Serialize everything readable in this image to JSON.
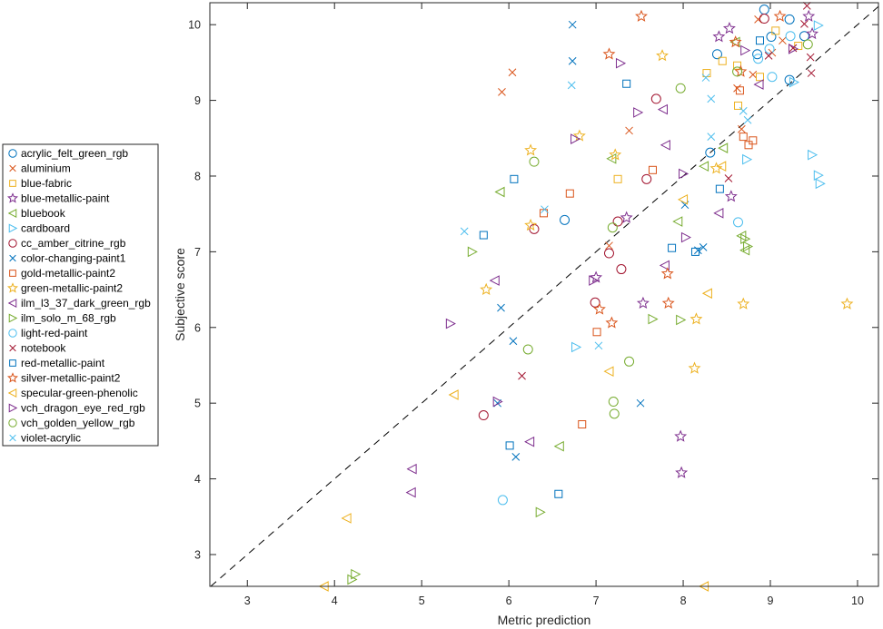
{
  "chart_data": {
    "type": "scatter",
    "title": "",
    "xlabel": "Metric prediction",
    "ylabel": "Subjective score",
    "xlim": [
      2.57,
      10.24
    ],
    "ylim": [
      2.58,
      10.29
    ],
    "xticks": [
      3,
      4,
      5,
      6,
      7,
      8,
      9,
      10
    ],
    "yticks": [
      3,
      4,
      5,
      6,
      7,
      8,
      9,
      10
    ],
    "grid": false,
    "reference_line": {
      "style": "dashed",
      "label": "y = x"
    },
    "legend_position": "left",
    "series": [
      {
        "name": "acrylic_felt_green_rgb",
        "marker": "circle",
        "color": "#0072BD",
        "points": [
          [
            6.64,
            7.42
          ],
          [
            8.31,
            8.31
          ],
          [
            8.39,
            9.61
          ],
          [
            8.85,
            9.61
          ],
          [
            9.01,
            9.84
          ],
          [
            9.22,
            9.27
          ],
          [
            9.39,
            9.85
          ],
          [
            9.22,
            10.07
          ],
          [
            8.93,
            10.2
          ]
        ]
      },
      {
        "name": "aluminium",
        "marker": "x",
        "color": "#D95319",
        "points": [
          [
            5.92,
            9.11
          ],
          [
            6.04,
            9.37
          ],
          [
            7.38,
            8.6
          ],
          [
            8.62,
            9.16
          ],
          [
            8.8,
            9.34
          ],
          [
            8.86,
            10.07
          ],
          [
            9.02,
            9.63
          ],
          [
            9.14,
            9.79
          ],
          [
            7.15,
            7.08
          ],
          [
            8.67,
            8.62
          ]
        ]
      },
      {
        "name": "blue-fabric",
        "marker": "square",
        "color": "#EDB120",
        "points": [
          [
            7.25,
            7.96
          ],
          [
            8.27,
            9.36
          ],
          [
            8.45,
            9.52
          ],
          [
            8.62,
            9.46
          ],
          [
            8.63,
            8.93
          ],
          [
            9.06,
            9.92
          ],
          [
            9.32,
            9.72
          ],
          [
            8.88,
            9.31
          ]
        ]
      },
      {
        "name": "blue-metallic-paint",
        "marker": "star",
        "color": "#7E2F8E",
        "points": [
          [
            8.53,
            9.95
          ],
          [
            8.41,
            9.84
          ],
          [
            9.44,
            10.11
          ],
          [
            9.48,
            9.88
          ],
          [
            8.55,
            7.73
          ],
          [
            7.0,
            6.66
          ],
          [
            7.35,
            7.45
          ],
          [
            7.54,
            6.32
          ],
          [
            7.97,
            4.56
          ],
          [
            7.98,
            4.08
          ]
        ]
      },
      {
        "name": "bluebook",
        "marker": "triangle-left",
        "color": "#77AC30",
        "points": [
          [
            5.9,
            7.79
          ],
          [
            7.18,
            8.23
          ],
          [
            7.94,
            7.4
          ],
          [
            8.46,
            8.37
          ],
          [
            8.24,
            8.13
          ],
          [
            8.67,
            7.21
          ],
          [
            8.71,
            7.02
          ],
          [
            8.6,
            9.77
          ],
          [
            6.58,
            4.43
          ]
        ]
      },
      {
        "name": "cardboard",
        "marker": "triangle-right",
        "color": "#4DBEEE",
        "points": [
          [
            9.55,
            9.99
          ],
          [
            8.73,
            8.22
          ],
          [
            9.48,
            8.28
          ],
          [
            9.55,
            8.01
          ],
          [
            9.57,
            7.9
          ],
          [
            6.77,
            5.74
          ],
          [
            9.27,
            9.24
          ]
        ]
      },
      {
        "name": "cc_amber_citrine_rgb",
        "marker": "circle",
        "color": "#A2142F",
        "points": [
          [
            7.69,
            9.02
          ],
          [
            6.29,
            7.3
          ],
          [
            7.25,
            7.4
          ],
          [
            7.29,
            6.77
          ],
          [
            7.15,
            6.98
          ],
          [
            6.99,
            6.33
          ],
          [
            5.71,
            4.84
          ],
          [
            8.93,
            10.08
          ],
          [
            7.58,
            7.96
          ]
        ]
      },
      {
        "name": "color-changing-paint1",
        "marker": "x",
        "color": "#0072BD",
        "points": [
          [
            6.73,
            10.0
          ],
          [
            6.73,
            9.52
          ],
          [
            5.91,
            6.26
          ],
          [
            6.05,
            5.82
          ],
          [
            7.51,
            5.0
          ],
          [
            6.08,
            4.29
          ],
          [
            8.02,
            7.62
          ],
          [
            8.23,
            7.06
          ],
          [
            8.17,
            7.02
          ],
          [
            5.87,
            5.0
          ]
        ]
      },
      {
        "name": "gold-metallic-paint2",
        "marker": "square",
        "color": "#D95319",
        "points": [
          [
            6.4,
            7.51
          ],
          [
            6.7,
            7.77
          ],
          [
            7.65,
            8.08
          ],
          [
            8.75,
            8.41
          ],
          [
            8.8,
            8.47
          ],
          [
            8.69,
            8.52
          ],
          [
            8.65,
            9.13
          ],
          [
            7.01,
            5.94
          ],
          [
            6.84,
            4.72
          ]
        ]
      },
      {
        "name": "green-metallic-paint2",
        "marker": "star",
        "color": "#EDB120",
        "points": [
          [
            7.76,
            9.59
          ],
          [
            6.81,
            8.53
          ],
          [
            6.25,
            8.34
          ],
          [
            7.22,
            8.28
          ],
          [
            8.38,
            8.1
          ],
          [
            6.25,
            7.35
          ],
          [
            5.74,
            6.5
          ],
          [
            8.15,
            6.11
          ],
          [
            8.69,
            6.31
          ],
          [
            8.13,
            5.46
          ],
          [
            9.88,
            6.31
          ]
        ]
      },
      {
        "name": "ilm_l3_37_dark_green_rgb",
        "marker": "triangle-left",
        "color": "#7E2F8E",
        "points": [
          [
            7.77,
            8.88
          ],
          [
            7.8,
            8.41
          ],
          [
            8.87,
            9.21
          ],
          [
            8.41,
            7.51
          ],
          [
            5.84,
            6.62
          ],
          [
            6.24,
            4.49
          ],
          [
            4.89,
            4.13
          ],
          [
            4.88,
            3.82
          ],
          [
            7.79,
            6.82
          ]
        ]
      },
      {
        "name": "ilm_solo_m_68_rgb",
        "marker": "triangle-right",
        "color": "#77AC30",
        "points": [
          [
            5.58,
            7.0
          ],
          [
            7.65,
            6.11
          ],
          [
            7.97,
            6.1
          ],
          [
            6.36,
            3.56
          ],
          [
            4.2,
            2.67
          ],
          [
            4.24,
            2.74
          ],
          [
            8.71,
            7.17
          ],
          [
            8.74,
            7.07
          ]
        ]
      },
      {
        "name": "light-red-paint",
        "marker": "circle",
        "color": "#4DBEEE",
        "points": [
          [
            5.93,
            3.72
          ],
          [
            8.63,
            7.39
          ],
          [
            9.02,
            9.31
          ],
          [
            8.86,
            9.55
          ],
          [
            9.23,
            9.85
          ],
          [
            8.99,
            9.68
          ]
        ]
      },
      {
        "name": "notebook",
        "marker": "x",
        "color": "#A2142F",
        "points": [
          [
            6.15,
            5.36
          ],
          [
            8.52,
            7.97
          ],
          [
            9.26,
            9.69
          ],
          [
            9.46,
            9.57
          ],
          [
            9.47,
            9.36
          ],
          [
            9.39,
            10.01
          ],
          [
            9.42,
            10.25
          ],
          [
            8.98,
            9.59
          ]
        ]
      },
      {
        "name": "red-metallic-paint",
        "marker": "square",
        "color": "#0072BD",
        "points": [
          [
            7.35,
            9.22
          ],
          [
            6.06,
            7.96
          ],
          [
            5.71,
            7.22
          ],
          [
            7.87,
            7.05
          ],
          [
            8.14,
            7.0
          ],
          [
            6.01,
            4.44
          ],
          [
            6.57,
            3.8
          ],
          [
            8.42,
            7.83
          ],
          [
            8.88,
            9.79
          ]
        ]
      },
      {
        "name": "silver-metallic-paint2",
        "marker": "star",
        "color": "#D95319",
        "points": [
          [
            7.52,
            10.11
          ],
          [
            7.15,
            9.61
          ],
          [
            7.18,
            6.06
          ],
          [
            7.04,
            6.24
          ],
          [
            7.82,
            6.71
          ],
          [
            7.83,
            6.32
          ],
          [
            9.11,
            10.11
          ],
          [
            8.66,
            9.38
          ],
          [
            8.6,
            9.77
          ]
        ]
      },
      {
        "name": "specular-green-phenolic",
        "marker": "triangle-left",
        "color": "#EDB120",
        "points": [
          [
            5.37,
            5.11
          ],
          [
            7.15,
            5.42
          ],
          [
            8.28,
            6.45
          ],
          [
            8.0,
            7.69
          ],
          [
            8.44,
            8.13
          ],
          [
            3.88,
            2.58
          ],
          [
            4.14,
            3.48
          ],
          [
            8.24,
            2.58
          ]
        ]
      },
      {
        "name": "vch_dragon_eye_red_rgb",
        "marker": "triangle-right",
        "color": "#7E2F8E",
        "points": [
          [
            7.28,
            9.49
          ],
          [
            6.76,
            8.49
          ],
          [
            8.71,
            9.66
          ],
          [
            7.48,
            8.84
          ],
          [
            8.0,
            8.03
          ],
          [
            6.97,
            6.62
          ],
          [
            5.33,
            6.05
          ],
          [
            5.87,
            5.02
          ],
          [
            8.03,
            7.19
          ],
          [
            9.26,
            9.68
          ]
        ]
      },
      {
        "name": "vch_golden_yellow_rgb",
        "marker": "circle",
        "color": "#77AC30",
        "points": [
          [
            6.29,
            8.19
          ],
          [
            7.19,
            7.32
          ],
          [
            7.97,
            9.16
          ],
          [
            8.62,
            9.38
          ],
          [
            9.43,
            9.74
          ],
          [
            6.22,
            5.71
          ],
          [
            7.38,
            5.55
          ],
          [
            7.2,
            5.02
          ],
          [
            7.21,
            4.86
          ]
        ]
      },
      {
        "name": "violet-acrylic",
        "marker": "x",
        "color": "#4DBEEE",
        "points": [
          [
            5.49,
            7.27
          ],
          [
            6.41,
            7.56
          ],
          [
            6.72,
            9.2
          ],
          [
            8.26,
            9.3
          ],
          [
            8.32,
            9.02
          ],
          [
            8.32,
            8.52
          ],
          [
            8.69,
            8.86
          ],
          [
            8.74,
            8.74
          ],
          [
            7.03,
            5.76
          ]
        ]
      }
    ]
  }
}
